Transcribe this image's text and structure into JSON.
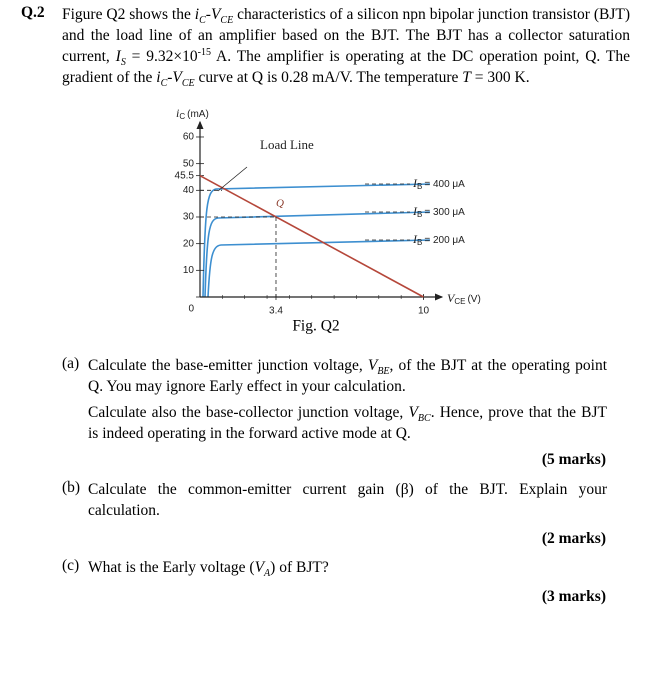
{
  "question": {
    "number": "Q.2",
    "intro": [
      "Figure Q2 shows the ",
      {
        "text": "i",
        "style": "italic"
      },
      {
        "text": "C",
        "style": "sub"
      },
      "-",
      {
        "text": "V",
        "style": "italic"
      },
      {
        "text": "CE",
        "style": "sub"
      },
      " characteristics of a silicon npn bipolar junction transistor (BJT) and the load line of an amplifier based on the BJT. The BJT has a collector saturation current, ",
      {
        "text": "I",
        "style": "italic"
      },
      {
        "text": "S",
        "style": "sub"
      },
      " = 9.32×10",
      {
        "text": "-15",
        "style": "sup"
      },
      " A. The amplifier is operating at the DC operation point, Q. The gradient of the ",
      {
        "text": "i",
        "style": "italic"
      },
      {
        "text": "C",
        "style": "sub"
      },
      "-",
      {
        "text": "V",
        "style": "italic"
      },
      {
        "text": "CE",
        "style": "sub"
      },
      " curve at Q is 0.28 mA/V. The temperature ",
      {
        "text": "T",
        "style": "italic"
      },
      " = 300 K."
    ]
  },
  "figure": {
    "caption": "Fig. Q2",
    "ylabel": {
      "symbol": "i",
      "sub": "C",
      "unit": "(mA)"
    },
    "xlabel": {
      "symbol": "V",
      "sub": "CE",
      "unit": "(V)"
    },
    "yticks": [
      60,
      50,
      45.5,
      40,
      30,
      20,
      10,
      0
    ],
    "xticks": [
      3.4,
      10
    ],
    "load_line_label": "Load Line",
    "point_label": "Q",
    "curves": [
      {
        "symbol": "I",
        "sub": "B",
        "text": "= 400 μA"
      },
      {
        "symbol": "I",
        "sub": "B",
        "text": "= 300 μA"
      },
      {
        "symbol": "I",
        "sub": "B",
        "text": "= 200 μA"
      }
    ]
  },
  "parts": [
    {
      "label": "(a)",
      "paragraphs": [
        [
          "Calculate the base-emitter junction voltage, ",
          {
            "text": "V",
            "style": "italic"
          },
          {
            "text": "BE",
            "style": "sub"
          },
          ", of the BJT at the operating point Q. You may ignore Early effect in your calculation."
        ],
        [
          "Calculate also the base-collector junction voltage, ",
          {
            "text": "V",
            "style": "italic"
          },
          {
            "text": "BC",
            "style": "sub"
          },
          ". Hence, prove that the BJT is indeed operating in the forward active mode at Q."
        ]
      ],
      "marks": "(5 marks)"
    },
    {
      "label": "(b)",
      "paragraphs": [
        [
          "Calculate the common-emitter current gain (β) of the BJT. Explain your calculation."
        ]
      ],
      "marks": "(2 marks)"
    },
    {
      "label": "(c)",
      "paragraphs": [
        [
          "What is the Early voltage (",
          {
            "text": "V",
            "style": "italic"
          },
          {
            "text": "A",
            "style": "sub"
          },
          ") of BJT?"
        ]
      ],
      "marks": "(3 marks)"
    }
  ]
}
